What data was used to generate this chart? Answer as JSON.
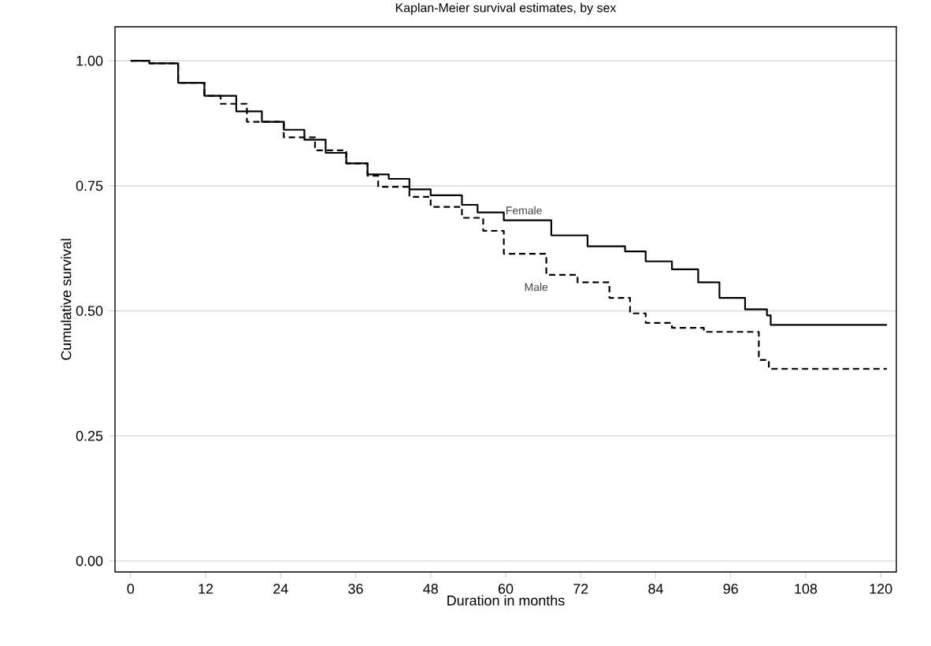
{
  "chart_data": {
    "type": "step",
    "title": "Kaplan-Meier survival estimates, by sex",
    "xlabel": "Duration in months",
    "ylabel": "Cumulative survival",
    "series": [
      {
        "name": "Female",
        "color": "#000000",
        "line_style": "solid",
        "x": [
          0,
          3,
          7.6,
          11.8,
          16.9,
          21,
          24.5,
          27.8,
          31.2,
          34.5,
          37.9,
          41.3,
          44.6,
          48,
          53,
          55.5,
          59.7,
          67.3,
          73.1,
          79.1,
          82.4,
          86.6,
          90.8,
          94.2,
          98.3,
          101.8,
          102.4,
          121
        ],
        "values": [
          1.0,
          0.995,
          0.956,
          0.93,
          0.899,
          0.878,
          0.862,
          0.842,
          0.816,
          0.795,
          0.773,
          0.764,
          0.743,
          0.731,
          0.712,
          0.697,
          0.681,
          0.651,
          0.629,
          0.619,
          0.599,
          0.583,
          0.557,
          0.526,
          0.503,
          0.491,
          0.472,
          0.472
        ]
      },
      {
        "name": "Male",
        "color": "#000000",
        "line_style": "dashed",
        "x": [
          0,
          3,
          7.6,
          11.8,
          14.4,
          18.6,
          24.5,
          29.5,
          34.5,
          37.9,
          39.6,
          44.6,
          48,
          53,
          56.4,
          59.7,
          66.5,
          71.5,
          76.6,
          79.9,
          82.4,
          86.6,
          91.7,
          98.8,
          100.5,
          102.1,
          121
        ],
        "values": [
          1.0,
          0.995,
          0.956,
          0.93,
          0.914,
          0.878,
          0.847,
          0.821,
          0.795,
          0.77,
          0.748,
          0.728,
          0.708,
          0.686,
          0.66,
          0.614,
          0.572,
          0.557,
          0.526,
          0.495,
          0.476,
          0.466,
          0.458,
          0.458,
          0.402,
          0.384,
          0.384
        ]
      }
    ],
    "xlim": [
      -2.5,
      122.5
    ],
    "ylim": [
      -0.022,
      1.068
    ],
    "xticks": [
      0,
      12,
      24,
      36,
      48,
      60,
      72,
      84,
      96,
      108,
      120
    ],
    "yticks": [
      {
        "value": 0,
        "label": "0.00"
      },
      {
        "value": 0.25,
        "label": "0.25"
      },
      {
        "value": 0.5,
        "label": "0.50"
      },
      {
        "value": 0.75,
        "label": "0.75"
      },
      {
        "value": 1,
        "label": "1.00"
      }
    ],
    "grid": "y",
    "legend": false
  }
}
